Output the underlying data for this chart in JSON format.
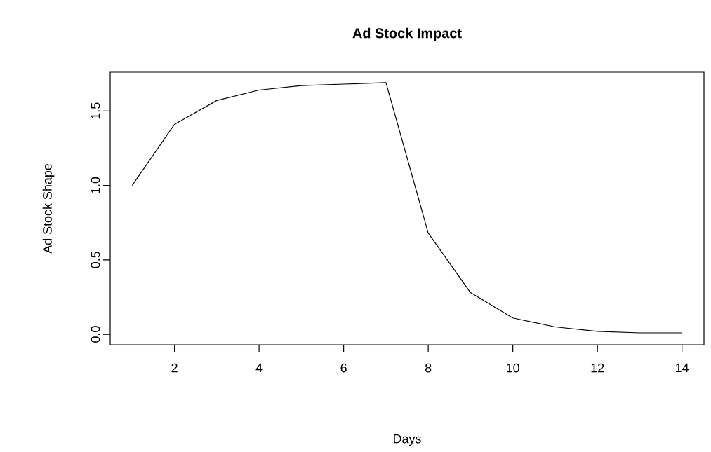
{
  "chart_data": {
    "type": "line",
    "title": "Ad Stock Impact",
    "xlabel": "Days",
    "ylabel": "Ad Stock Shape",
    "x": [
      1,
      2,
      3,
      4,
      5,
      6,
      7,
      8,
      9,
      10,
      11,
      12,
      13,
      14
    ],
    "values": [
      1.0,
      1.41,
      1.57,
      1.64,
      1.67,
      1.68,
      1.69,
      0.68,
      0.28,
      0.11,
      0.05,
      0.02,
      0.01,
      0.01
    ],
    "color": "#000000",
    "marker": "none",
    "line_style": "solid",
    "xlim": [
      0.48,
      14.52
    ],
    "ylim": [
      -0.07,
      1.76
    ],
    "xticks": [
      2,
      4,
      6,
      8,
      10,
      12,
      14
    ],
    "yticks": [
      {
        "value": 0,
        "label": "0.0"
      },
      {
        "value": 0.5,
        "label": "0.5"
      },
      {
        "value": 1,
        "label": "1.0"
      },
      {
        "value": 1.5,
        "label": "1.5"
      }
    ]
  }
}
